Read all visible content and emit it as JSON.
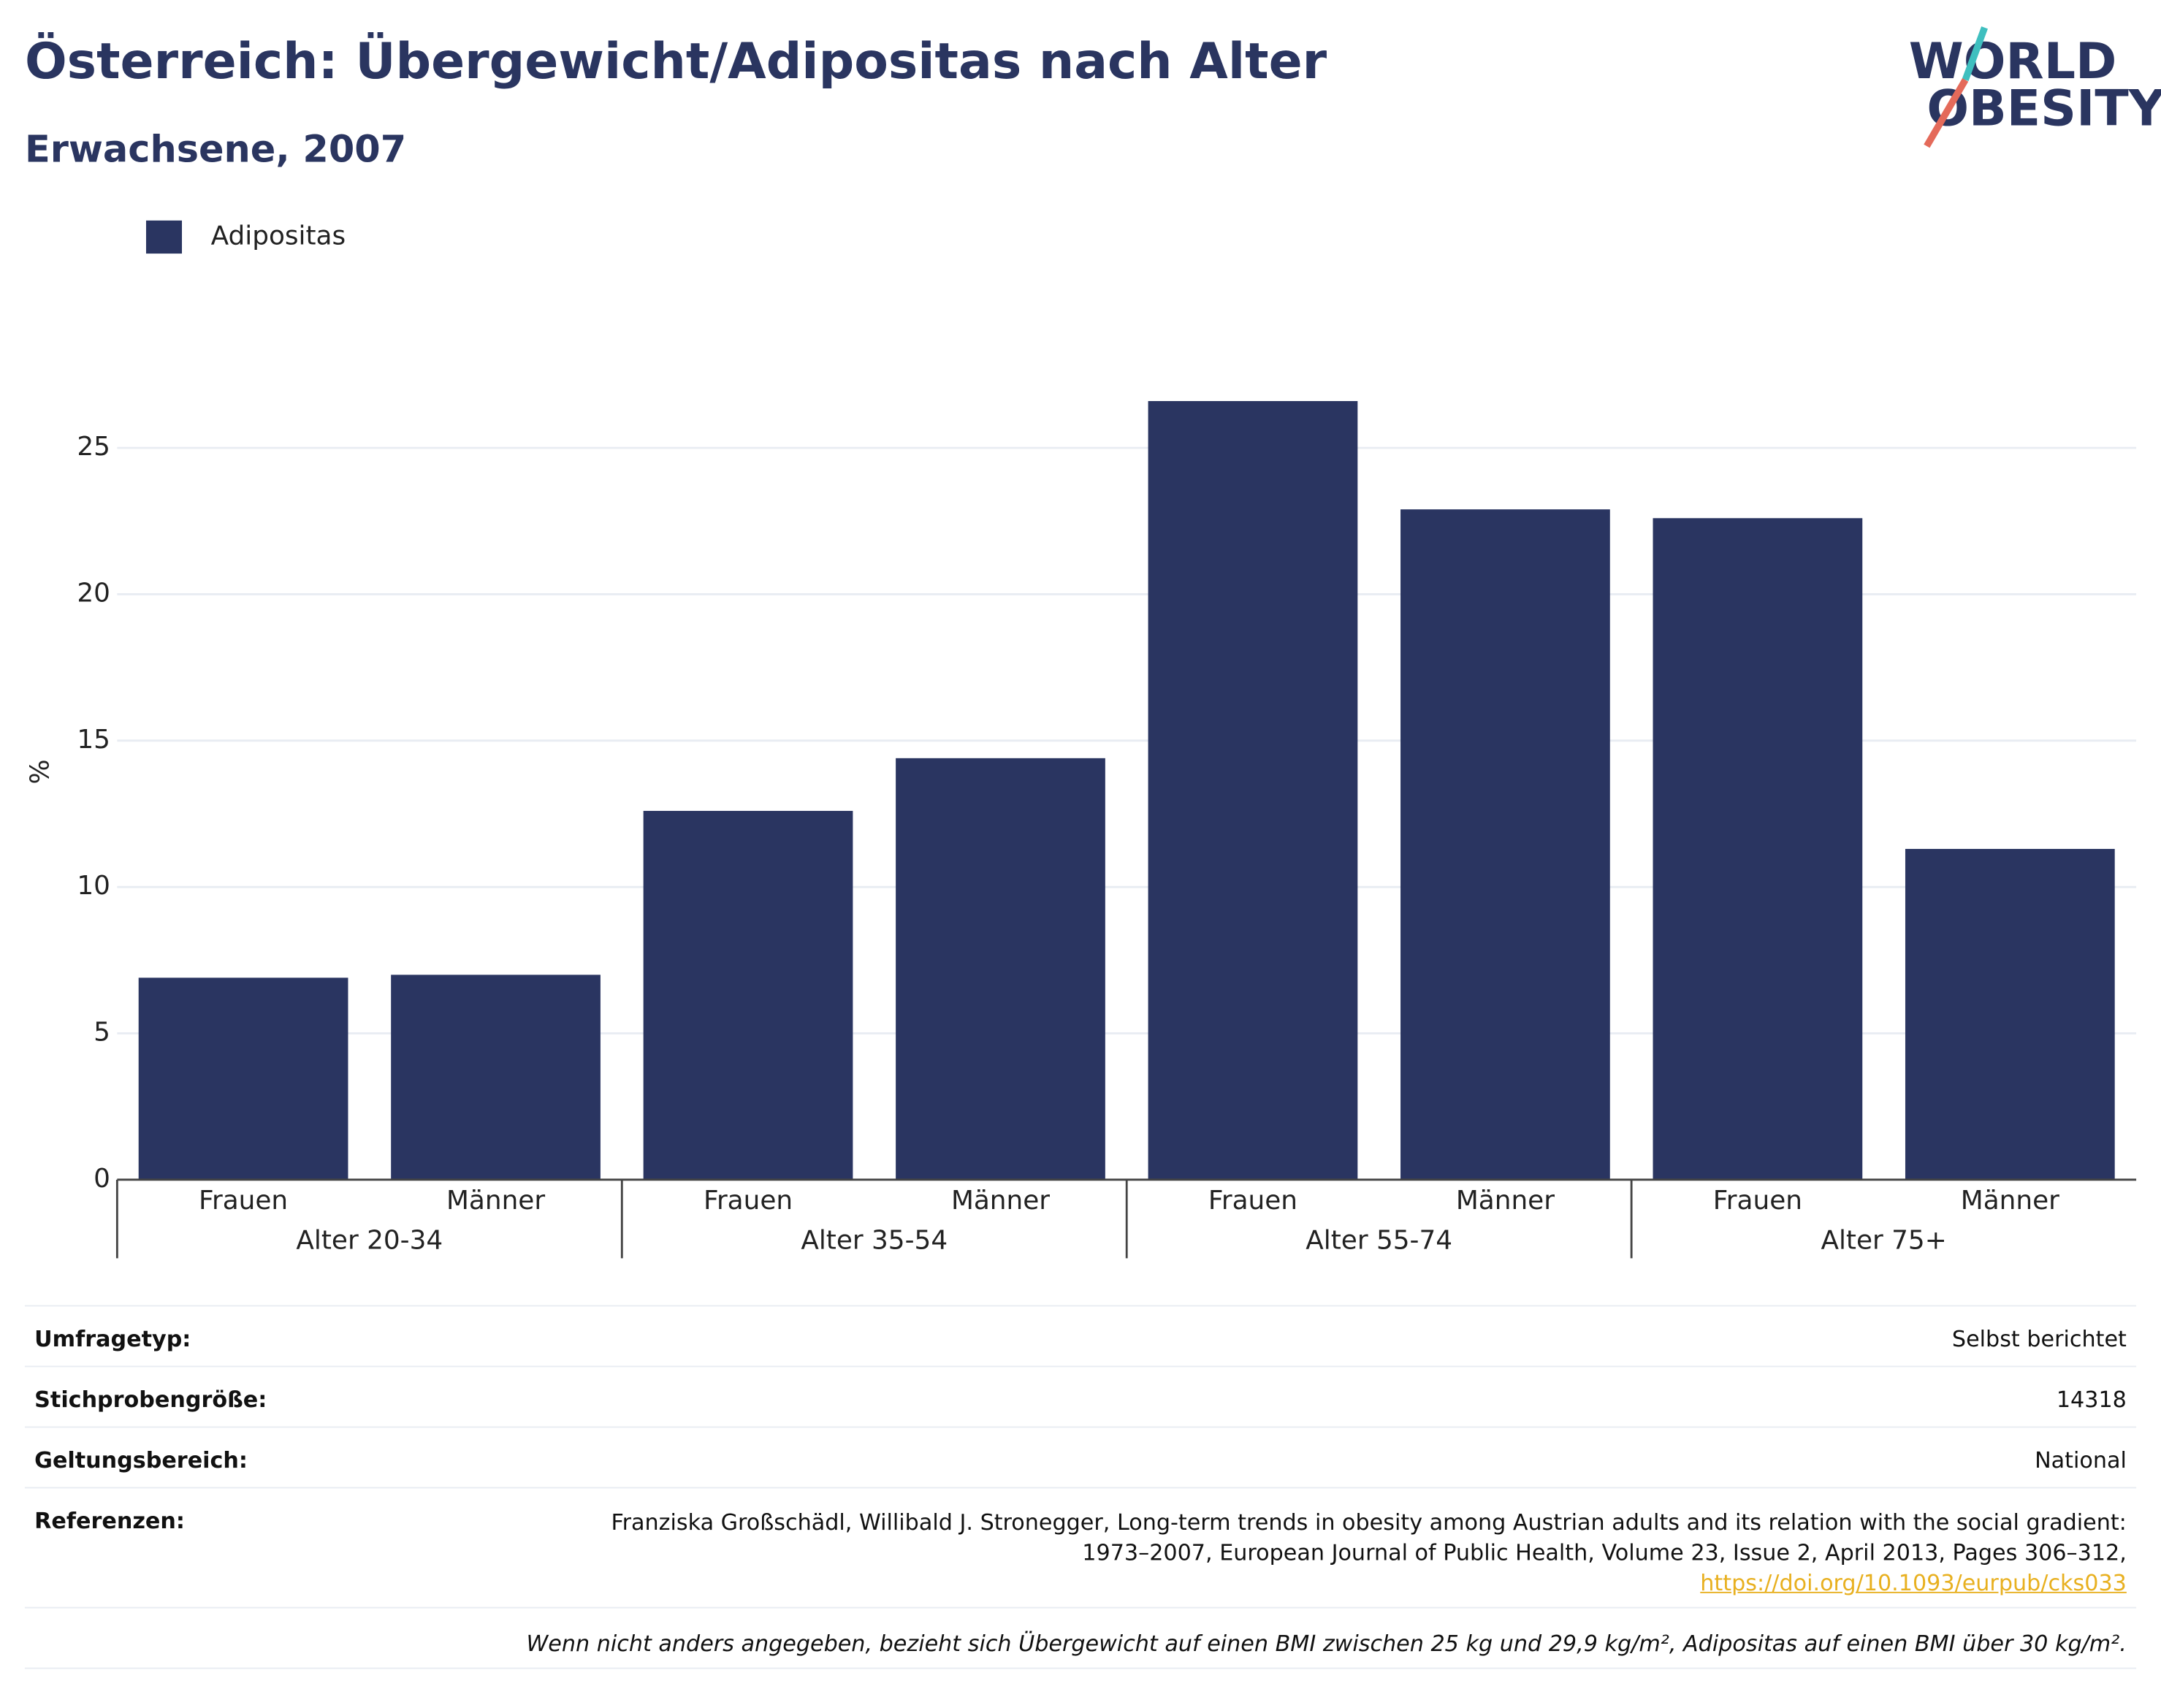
{
  "chart_data": {
    "type": "bar",
    "title": "Österreich: Übergewicht/Adipositas nach Alter",
    "subtitle": "Erwachsene, 2007",
    "y_label": "%",
    "categories": [
      "Frauen",
      "Männer",
      "Frauen",
      "Männer",
      "Frauen",
      "Männer",
      "Frauen",
      "Männer"
    ],
    "groups": [
      "Alter 20-34",
      "Alter 35-54",
      "Alter 55-74",
      "Alter 75+"
    ],
    "series": [
      {
        "name": "Adipositas",
        "color": "#2a3561",
        "values": [
          6.9,
          7.0,
          12.6,
          14.4,
          26.6,
          22.9,
          22.6,
          11.3
        ]
      }
    ],
    "ylim": [
      0,
      28
    ],
    "yticks": [
      0,
      5,
      10,
      15,
      20,
      25
    ],
    "grid": true,
    "legend": "top-left"
  },
  "logo": {
    "line1": "WORLD",
    "line2": "OBESITY"
  },
  "table": {
    "rows": [
      [
        "Umfragetyp:",
        "Selbst berichtet"
      ],
      [
        "Stichprobengröße:",
        "14318"
      ],
      [
        "Geltungsbereich:",
        "National"
      ]
    ],
    "references": {
      "label": "Referenzen:",
      "text": "Franziska Großschädl, Willibald J. Stronegger, Long-term trends in obesity among Austrian adults and its relation with the social gradient: 1973–2007, European Journal of Public Health, Volume 23, Issue 2, April 2013, Pages 306–312,",
      "link": "https://doi.org/10.1093/eurpub/cks033"
    },
    "footnote": "Wenn nicht anders angegeben, bezieht sich Übergewicht auf einen BMI zwischen 25 kg und 29,9 kg/m², Adipositas auf einen BMI über 30 kg/m²."
  }
}
